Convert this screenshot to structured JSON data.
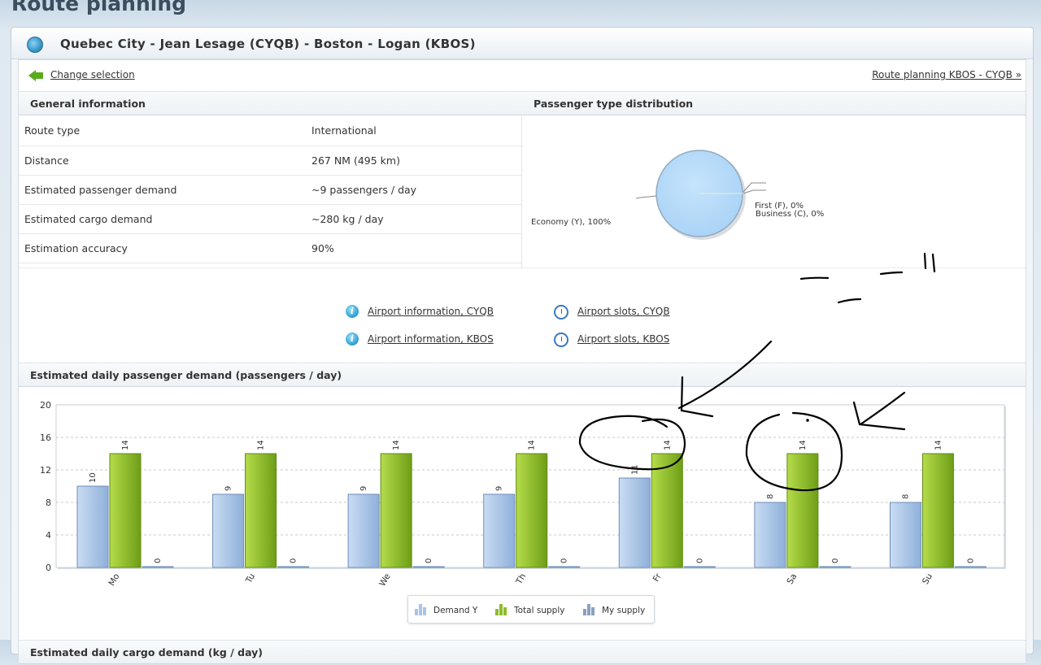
{
  "page": {
    "title": "Route planning"
  },
  "route": {
    "title": "Quebec City - Jean Lesage (CYQB) - Boston - Logan (KBOS)"
  },
  "nav": {
    "change_selection": "Change selection",
    "reverse_route": "Route planning KBOS - CYQB »"
  },
  "general": {
    "heading": "General information",
    "rows": [
      {
        "label": "Route type",
        "value": "International"
      },
      {
        "label": "Distance",
        "value": "267 NM (495 km)"
      },
      {
        "label": "Estimated passenger demand",
        "value": "~9 passengers / day"
      },
      {
        "label": "Estimated cargo demand",
        "value": "~280 kg / day"
      },
      {
        "label": "Estimation accuracy",
        "value": "90%"
      }
    ]
  },
  "distribution": {
    "heading": "Passenger type distribution",
    "colors": {
      "economy": "#b8dcfa"
    }
  },
  "links": {
    "airport_info_cyqb": "Airport information, CYQB",
    "airport_info_kbos": "Airport information, KBOS",
    "airport_slots_cyqb": "Airport slots, CYQB",
    "airport_slots_kbos": "Airport slots, KBOS"
  },
  "passenger_section": {
    "heading": "Estimated daily passenger demand (passengers / day)"
  },
  "cargo_section": {
    "heading": "Estimated daily cargo demand (kg / day)"
  },
  "colors": {
    "demand": "#a9c4e6",
    "supply": "#8cbd2a",
    "my_supply": "#8aa0c0"
  },
  "chart_data": [
    {
      "type": "pie",
      "labels": [
        "Economy (Y), 100%",
        "First (F), 0%",
        "Business (C), 0%"
      ],
      "categories": [
        "Economy (Y)",
        "First (F)",
        "Business (C)"
      ],
      "values": [
        100,
        0,
        0
      ]
    },
    {
      "type": "bar",
      "categories": [
        "Mo",
        "Tu",
        "We",
        "Th",
        "Fr",
        "Sa",
        "Su"
      ],
      "series": [
        {
          "name": "Demand Y",
          "values": [
            10,
            9,
            9,
            9,
            11,
            8,
            8
          ]
        },
        {
          "name": "Total supply",
          "values": [
            14,
            14,
            14,
            14,
            14,
            14,
            14
          ]
        },
        {
          "name": "My supply",
          "values": [
            0,
            0,
            0,
            0,
            0,
            0,
            0
          ]
        }
      ],
      "yticks": [
        "0",
        "4",
        "8",
        "12",
        "16",
        "20"
      ],
      "ylim": [
        0,
        20
      ],
      "grid": true,
      "legend": "bottom-center"
    }
  ]
}
